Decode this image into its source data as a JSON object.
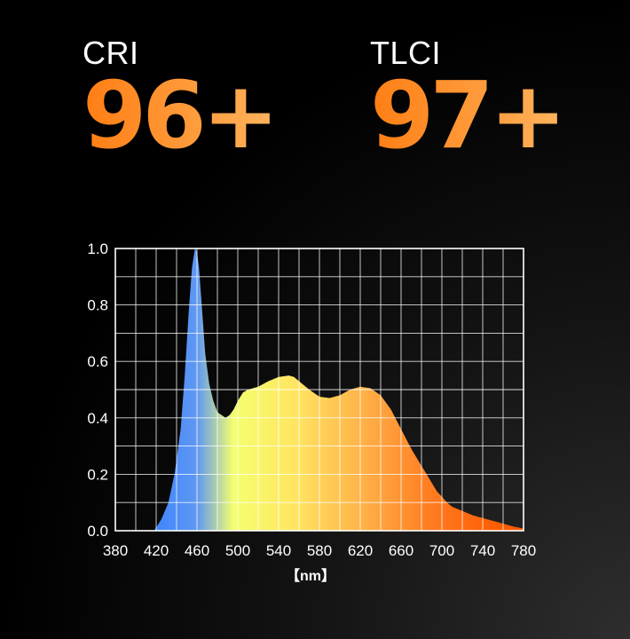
{
  "metrics": {
    "cri": {
      "label": "CRI",
      "value": "96+"
    },
    "tlci": {
      "label": "TLCI",
      "value": "97+"
    }
  },
  "colors": {
    "accent": "#ff8a1e",
    "grid": "#ffffff",
    "spectrum_stops": [
      "#3e83ff",
      "#5f98f2",
      "#f4ff6e",
      "#ffe562",
      "#ffb349",
      "#ff7a20",
      "#ff5a00"
    ]
  },
  "chart_data": {
    "type": "area",
    "title": "",
    "xlabel": "【nm】",
    "ylabel": "",
    "xlim": [
      380,
      780
    ],
    "ylim": [
      0,
      1.0
    ],
    "grid": true,
    "x_ticks": [
      380,
      420,
      460,
      500,
      540,
      580,
      620,
      660,
      700,
      740,
      780
    ],
    "y_ticks": [
      "0.0",
      "0.2",
      "0.4",
      "0.6",
      "0.8",
      "1.0"
    ],
    "series": [
      {
        "x": [
          418,
          425,
          432,
          438,
          444,
          448,
          452,
          455,
          458,
          460,
          462,
          465,
          468,
          472,
          476,
          480,
          484,
          488,
          492,
          496,
          500,
          505,
          510,
          515,
          520,
          530,
          540,
          550,
          555,
          560,
          570,
          580,
          590,
          600,
          610,
          620,
          630,
          640,
          650,
          660,
          670,
          680,
          685,
          690,
          695,
          700,
          705,
          710,
          720,
          730,
          740,
          750,
          760,
          770,
          780
        ],
        "y": [
          0.0,
          0.04,
          0.1,
          0.2,
          0.36,
          0.55,
          0.78,
          0.93,
          1.0,
          0.99,
          0.93,
          0.78,
          0.63,
          0.52,
          0.46,
          0.42,
          0.41,
          0.4,
          0.41,
          0.43,
          0.46,
          0.49,
          0.5,
          0.505,
          0.51,
          0.53,
          0.545,
          0.55,
          0.545,
          0.53,
          0.5,
          0.475,
          0.47,
          0.48,
          0.5,
          0.51,
          0.505,
          0.48,
          0.43,
          0.36,
          0.29,
          0.23,
          0.2,
          0.17,
          0.14,
          0.12,
          0.1,
          0.085,
          0.07,
          0.055,
          0.045,
          0.035,
          0.025,
          0.015,
          0.008
        ]
      }
    ]
  }
}
